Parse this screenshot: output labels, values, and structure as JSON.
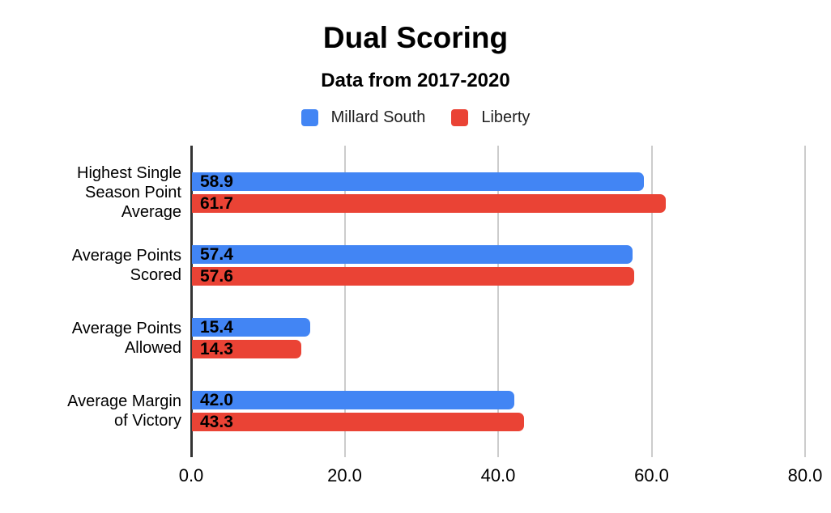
{
  "header": {
    "title": "Dual Scoring",
    "subtitle": "Data from 2017-2020"
  },
  "legend": [
    {
      "label": "Millard South",
      "color": "#4285f4"
    },
    {
      "label": "Liberty",
      "color": "#ea4335"
    }
  ],
  "chart_data": {
    "type": "bar",
    "orientation": "horizontal",
    "title": "Dual Scoring",
    "subtitle": "Data from 2017-2020",
    "categories": [
      "Highest Single Season Point Average",
      "Average Points Scored",
      "Average Points Allowed",
      "Average Margin of Victory"
    ],
    "category_lines": [
      [
        "Highest Single",
        "Season Point",
        "Average"
      ],
      [
        "Average Points",
        "Scored"
      ],
      [
        "Average Points",
        "Allowed"
      ],
      [
        "Average Margin",
        "of Victory"
      ]
    ],
    "series": [
      {
        "name": "Millard South",
        "color": "#4285f4",
        "values": [
          58.9,
          57.4,
          15.4,
          42.0
        ],
        "labels": [
          "58.9",
          "57.4",
          "15.4",
          "42.0"
        ]
      },
      {
        "name": "Liberty",
        "color": "#ea4335",
        "values": [
          61.7,
          57.6,
          14.3,
          43.3
        ],
        "labels": [
          "61.7",
          "57.6",
          "14.3",
          "43.3"
        ]
      }
    ],
    "xlim": [
      0,
      80
    ],
    "x_ticks": [
      {
        "value": 0,
        "label": "0.0"
      },
      {
        "value": 20,
        "label": "20.0"
      },
      {
        "value": 40,
        "label": "40.0"
      },
      {
        "value": 60,
        "label": "60.0"
      },
      {
        "value": 80,
        "label": "80.0"
      }
    ],
    "grid": true,
    "legend_position": "top",
    "colors": {
      "grid": "#cccccc",
      "baseline": "#333333",
      "value_label": "#000000",
      "axis_label": "#000000",
      "category_label": "#000000"
    }
  }
}
